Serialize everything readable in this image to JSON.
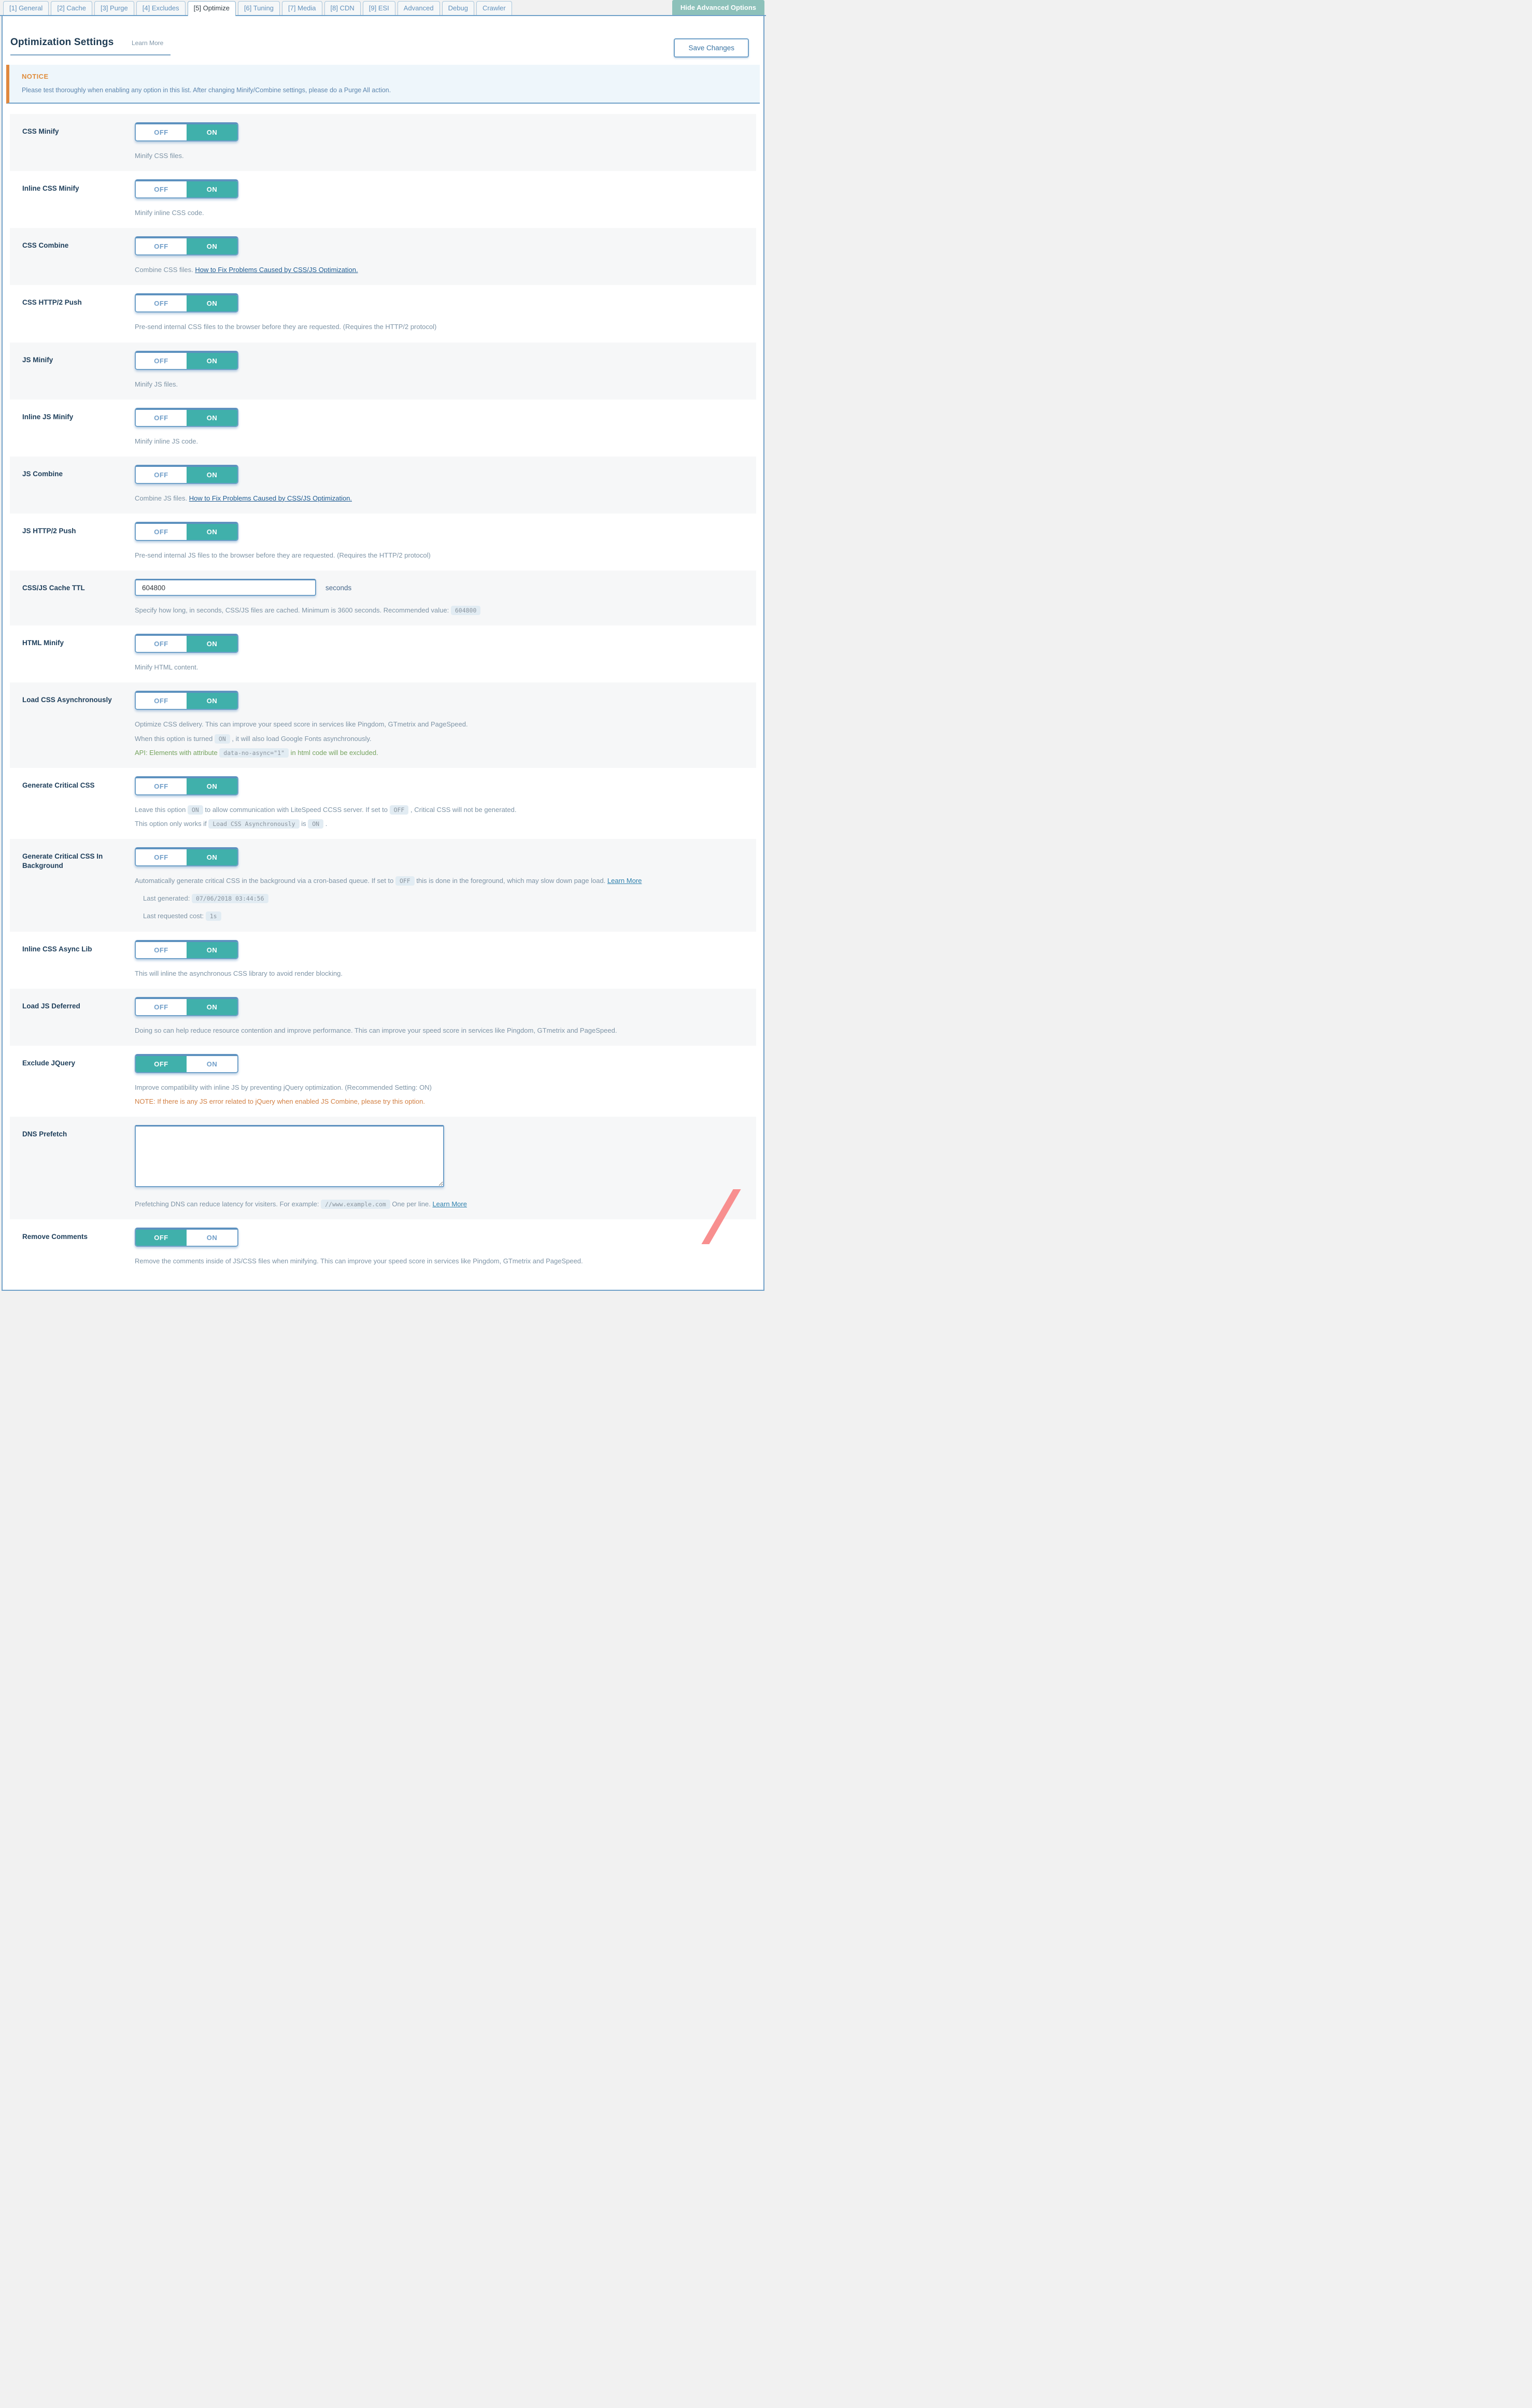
{
  "tabs": [
    {
      "label": "[1] General",
      "active": false
    },
    {
      "label": "[2] Cache",
      "active": false
    },
    {
      "label": "[3] Purge",
      "active": false
    },
    {
      "label": "[4] Excludes",
      "active": false
    },
    {
      "label": "[5] Optimize",
      "active": true
    },
    {
      "label": "[6] Tuning",
      "active": false
    },
    {
      "label": "[7] Media",
      "active": false
    },
    {
      "label": "[8] CDN",
      "active": false
    },
    {
      "label": "[9] ESI",
      "active": false
    },
    {
      "label": "Advanced",
      "active": false
    },
    {
      "label": "Debug",
      "active": false
    },
    {
      "label": "Crawler",
      "active": false
    }
  ],
  "header": {
    "title": "Optimization Settings",
    "learn_more": "Learn More",
    "save_button": "Save Changes",
    "hide_advanced_button": "Hide Advanced Options"
  },
  "notice": {
    "title": "NOTICE",
    "text": "Please test thoroughly when enabling any option in this list. After changing Minify/Combine settings, please do a Purge All action."
  },
  "controls": {
    "off": "OFF",
    "on": "ON"
  },
  "rows": [
    {
      "label": "CSS Minify",
      "control": {
        "type": "toggle",
        "value": "ON"
      },
      "desc": [
        {
          "segs": [
            {
              "t": "Minify CSS files."
            }
          ]
        }
      ]
    },
    {
      "label": "Inline CSS Minify",
      "control": {
        "type": "toggle",
        "value": "ON"
      },
      "desc": [
        {
          "segs": [
            {
              "t": "Minify inline CSS code."
            }
          ]
        }
      ]
    },
    {
      "label": "CSS Combine",
      "control": {
        "type": "toggle",
        "value": "ON"
      },
      "desc": [
        {
          "segs": [
            {
              "t": "Combine CSS files. "
            },
            {
              "a": "How to Fix Problems Caused by CSS/JS Optimization."
            }
          ]
        }
      ]
    },
    {
      "label": "CSS HTTP/2 Push",
      "control": {
        "type": "toggle",
        "value": "ON"
      },
      "desc": [
        {
          "segs": [
            {
              "t": "Pre-send internal CSS files to the browser before they are requested. (Requires the HTTP/2 protocol)"
            }
          ]
        }
      ]
    },
    {
      "label": "JS Minify",
      "control": {
        "type": "toggle",
        "value": "ON"
      },
      "desc": [
        {
          "segs": [
            {
              "t": "Minify JS files."
            }
          ]
        }
      ]
    },
    {
      "label": "Inline JS Minify",
      "control": {
        "type": "toggle",
        "value": "ON"
      },
      "desc": [
        {
          "segs": [
            {
              "t": "Minify inline JS code."
            }
          ]
        }
      ]
    },
    {
      "label": "JS Combine",
      "control": {
        "type": "toggle",
        "value": "ON"
      },
      "desc": [
        {
          "segs": [
            {
              "t": "Combine JS files. "
            },
            {
              "a": "How to Fix Problems Caused by CSS/JS Optimization."
            }
          ]
        }
      ]
    },
    {
      "label": "JS HTTP/2 Push",
      "control": {
        "type": "toggle",
        "value": "ON"
      },
      "desc": [
        {
          "segs": [
            {
              "t": "Pre-send internal JS files to the browser before they are requested. (Requires the HTTP/2 protocol)"
            }
          ]
        }
      ]
    },
    {
      "label": "CSS/JS Cache TTL",
      "control": {
        "type": "input",
        "value": "604800",
        "suffix": "seconds"
      },
      "desc": [
        {
          "segs": [
            {
              "t": "Specify how long, in seconds, CSS/JS files are cached. Minimum is 3600 seconds. Recommended value: "
            },
            {
              "c": "604800"
            }
          ]
        }
      ]
    },
    {
      "label": "HTML Minify",
      "control": {
        "type": "toggle",
        "value": "ON"
      },
      "desc": [
        {
          "segs": [
            {
              "t": "Minify HTML content."
            }
          ]
        }
      ]
    },
    {
      "label": "Load CSS Asynchronously",
      "control": {
        "type": "toggle",
        "value": "ON"
      },
      "desc": [
        {
          "segs": [
            {
              "t": "Optimize CSS delivery. This can improve your speed score in services like Pingdom, GTmetrix and PageSpeed."
            }
          ]
        },
        {
          "segs": [
            {
              "t": "When this option is turned "
            },
            {
              "c": "ON"
            },
            {
              "t": " , it will also load Google Fonts asynchronously."
            }
          ]
        },
        {
          "cls": "green",
          "segs": [
            {
              "t": "API: Elements with attribute "
            },
            {
              "c": "data-no-async=\"1\""
            },
            {
              "t": " in html code will be excluded."
            }
          ]
        }
      ]
    },
    {
      "label": "Generate Critical CSS",
      "control": {
        "type": "toggle",
        "value": "ON"
      },
      "desc": [
        {
          "segs": [
            {
              "t": "Leave this option "
            },
            {
              "c": "ON"
            },
            {
              "t": " to allow communication with LiteSpeed CCSS server. If set to "
            },
            {
              "c": "OFF"
            },
            {
              "t": " , Critical CSS will not be generated."
            }
          ]
        },
        {
          "segs": [
            {
              "t": "This option only works if "
            },
            {
              "c": "Load CSS Asynchronously"
            },
            {
              "t": " is "
            },
            {
              "c": "ON"
            },
            {
              "t": " ."
            }
          ]
        }
      ]
    },
    {
      "label": "Generate Critical CSS In Background",
      "control": {
        "type": "toggle",
        "value": "ON"
      },
      "desc": [
        {
          "segs": [
            {
              "t": "Automatically generate critical CSS in the background via a cron-based queue. If set to "
            },
            {
              "c": "OFF"
            },
            {
              "t": " this is done in the foreground, which may slow down page load. "
            },
            {
              "a": "Learn More"
            }
          ]
        },
        {
          "cls": "kv",
          "segs": [
            {
              "t": "Last generated: "
            },
            {
              "c": "07/06/2018 03:44:56"
            }
          ]
        },
        {
          "cls": "kv",
          "segs": [
            {
              "t": "Last requested cost: "
            },
            {
              "c": "1s"
            }
          ]
        }
      ]
    },
    {
      "label": "Inline CSS Async Lib",
      "control": {
        "type": "toggle",
        "value": "ON"
      },
      "desc": [
        {
          "segs": [
            {
              "t": "This will inline the asynchronous CSS library to avoid render blocking."
            }
          ]
        }
      ]
    },
    {
      "label": "Load JS Deferred",
      "control": {
        "type": "toggle",
        "value": "ON"
      },
      "desc": [
        {
          "segs": [
            {
              "t": "Doing so can help reduce resource contention and improve performance. This can improve your speed score in services like Pingdom, GTmetrix and PageSpeed."
            }
          ]
        }
      ]
    },
    {
      "label": "Exclude JQuery",
      "control": {
        "type": "toggle",
        "value": "OFF"
      },
      "desc": [
        {
          "segs": [
            {
              "t": "Improve compatibility with inline JS by preventing jQuery optimization. (Recommended Setting: ON)"
            }
          ]
        },
        {
          "cls": "note",
          "segs": [
            {
              "t": "NOTE: If there is any JS error related to jQuery when enabled JS Combine, please try this option."
            }
          ]
        }
      ]
    },
    {
      "label": "DNS Prefetch",
      "control": {
        "type": "textarea",
        "value": ""
      },
      "desc": [
        {
          "segs": [
            {
              "t": "Prefetching DNS can reduce latency for visiters. For example: "
            },
            {
              "c": "//www.example.com"
            },
            {
              "t": " One per line. "
            },
            {
              "a": "Learn More"
            }
          ]
        }
      ]
    },
    {
      "label": "Remove Comments",
      "control": {
        "type": "toggle",
        "value": "OFF"
      },
      "desc": [
        {
          "segs": [
            {
              "t": "Remove the comments inside of JS/CSS files when minifying. This can improve your speed score in services like Pingdom, GTmetrix and PageSpeed."
            }
          ]
        }
      ]
    }
  ],
  "theme": {
    "accent_teal": "#40b0ab",
    "hide_button_teal": "#8dc1ba",
    "border_blue": "#6fa0c8",
    "notice_orange": "#e08d3d",
    "note_text_orange": "#d28044",
    "api_green": "#76a45f",
    "label_navy": "#20405c",
    "desc_gray": "#7e94a6",
    "slash_pink": "#f88f8f"
  }
}
